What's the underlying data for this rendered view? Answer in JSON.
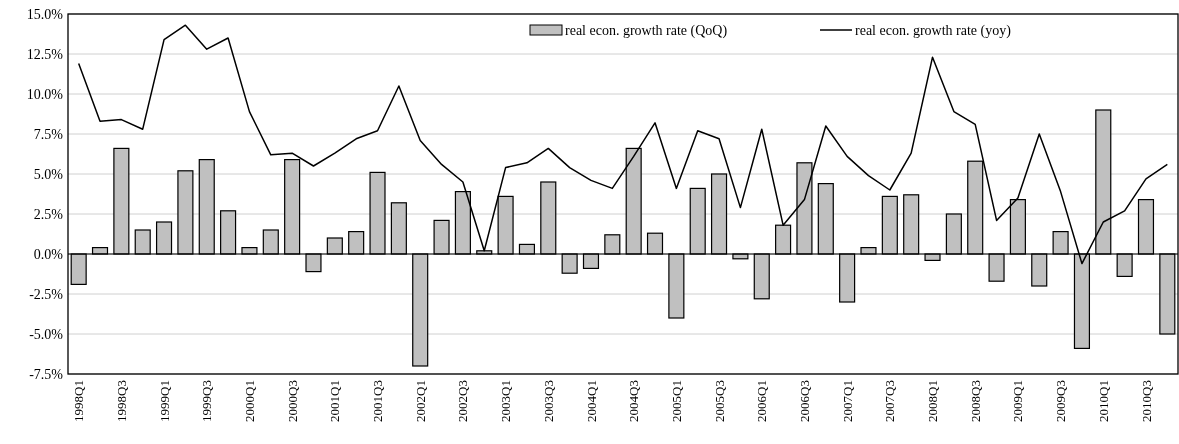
{
  "chart_data": {
    "type": "bar",
    "categories": [
      "1998Q1",
      null,
      "1998Q3",
      null,
      "1999Q1",
      null,
      "1999Q3",
      null,
      "2000Q1",
      null,
      "2000Q3",
      null,
      "2001Q1",
      null,
      "2001Q3",
      null,
      "2002Q1",
      null,
      "2002Q3",
      null,
      "2003Q1",
      null,
      "2003Q3",
      null,
      "2004Q1",
      null,
      "2004Q3",
      null,
      "2005Q1",
      null,
      "2005Q3",
      null,
      "2006Q1",
      null,
      "2006Q3",
      null,
      "2007Q1",
      null,
      "2007Q3",
      null,
      "2008Q1",
      null,
      "2008Q3",
      null,
      "2009Q1",
      null,
      "2009Q3",
      null,
      "2010Q1",
      null,
      "2010Q3",
      null
    ],
    "series": [
      {
        "name": "real econ. growth rate (QoQ)",
        "color": "#c0c0c0",
        "values": [
          -1.9,
          0.4,
          6.6,
          1.5,
          2.0,
          5.2,
          5.9,
          2.7,
          0.4,
          1.5,
          5.9,
          -1.1,
          1.0,
          1.4,
          5.1,
          3.2,
          -7.0,
          2.1,
          3.9,
          0.2,
          3.6,
          0.6,
          4.5,
          -1.2,
          -0.9,
          1.2,
          6.6,
          1.3,
          -4.0,
          4.1,
          5.0,
          -0.3,
          -2.8,
          1.8,
          5.7,
          4.4,
          -3.0,
          0.4,
          3.6,
          3.7,
          -0.4,
          2.5,
          5.8,
          -1.7,
          3.4,
          -2.0,
          1.4,
          -5.9,
          9.0,
          -1.4,
          3.4,
          -5.0
        ]
      },
      {
        "name": "real econ. growth rate (yoy)",
        "type": "line",
        "color": "#000000",
        "values": [
          11.9,
          8.3,
          8.4,
          7.8,
          13.4,
          14.3,
          12.8,
          13.5,
          8.9,
          6.2,
          6.3,
          5.5,
          6.3,
          7.2,
          7.7,
          10.5,
          7.1,
          5.6,
          4.5,
          0.2,
          5.4,
          5.7,
          6.6,
          5.4,
          4.6,
          4.1,
          6.1,
          8.2,
          4.1,
          7.7,
          7.2,
          2.9,
          7.8,
          1.8,
          3.4,
          8.0,
          6.1,
          4.9,
          4.0,
          6.3,
          12.3,
          8.9,
          8.1,
          2.1,
          3.5,
          7.5,
          3.9,
          -0.6,
          2.0,
          2.7,
          4.7,
          5.6
        ]
      }
    ],
    "ylim": [
      -7.5,
      15
    ],
    "yticks": [
      {
        "value": -7.5,
        "label": "-7.5%"
      },
      {
        "value": -5,
        "label": "-5.0%"
      },
      {
        "value": -2.5,
        "label": "-2.5%"
      },
      {
        "value": 0,
        "label": "0.0%"
      },
      {
        "value": 2.5,
        "label": "2.5%"
      },
      {
        "value": 5,
        "label": "5.0%"
      },
      {
        "value": 7.5,
        "label": "7.5%"
      },
      {
        "value": 10,
        "label": "10.0%"
      },
      {
        "value": 12.5,
        "label": "12.5%"
      },
      {
        "value": 15,
        "label": "15.0%"
      }
    ],
    "grid": "y",
    "legend": "top right"
  }
}
